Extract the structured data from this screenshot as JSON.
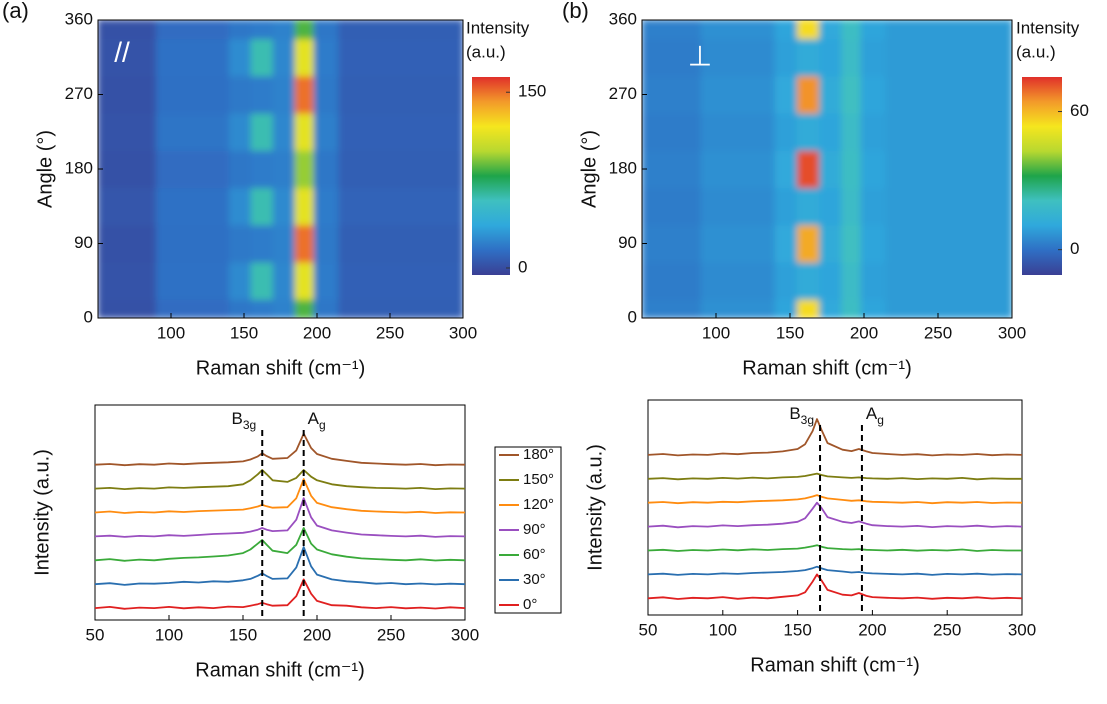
{
  "chart_data": [
    {
      "type": "heatmap",
      "panel": "(a)",
      "annotation": "//",
      "x_label": "Raman shift (cm⁻¹)",
      "y_label": "Angle (°)",
      "colorbar_title": [
        "Intensity",
        "(a.u.)"
      ],
      "xbins": [
        50,
        90,
        140,
        155,
        170,
        185,
        198,
        215,
        300
      ],
      "ybins": [
        0,
        22.5,
        67.5,
        112.5,
        157.5,
        202.5,
        247.5,
        292.5,
        337.5,
        360
      ],
      "values": [
        [
          2,
          14,
          18,
          20,
          22,
          85,
          18,
          8
        ],
        [
          3,
          16,
          25,
          60,
          24,
          115,
          20,
          9
        ],
        [
          2,
          15,
          19,
          20,
          22,
          150,
          19,
          8
        ],
        [
          4,
          16,
          26,
          60,
          25,
          115,
          20,
          10
        ],
        [
          2,
          14,
          18,
          20,
          21,
          95,
          18,
          8
        ],
        [
          3,
          17,
          25,
          60,
          24,
          115,
          21,
          9
        ],
        [
          2,
          15,
          19,
          20,
          22,
          150,
          19,
          8
        ],
        [
          3,
          16,
          26,
          60,
          24,
          115,
          20,
          9
        ],
        [
          2,
          14,
          18,
          20,
          22,
          85,
          18,
          8
        ]
      ],
      "xlim": [
        50,
        300
      ],
      "ylim": [
        0,
        360
      ],
      "xticks": [
        100,
        150,
        200,
        250,
        300
      ],
      "yticks": [
        0,
        90,
        180,
        270,
        360
      ],
      "zlim": [
        -6,
        163
      ],
      "zticks": [
        0,
        150
      ],
      "colormap": [
        "#3a3f94",
        "#2f6fc4",
        "#2fa8dc",
        "#3fc0c0",
        "#1ea44a",
        "#b8d830",
        "#f5e61e",
        "#f39a2a",
        "#e0302a"
      ]
    },
    {
      "type": "line",
      "x_label": "Raman shift (cm⁻¹)",
      "y_label": "Intensity (a.u.)",
      "legend": "outside-right",
      "x": [
        50,
        60,
        70,
        80,
        90,
        100,
        110,
        120,
        130,
        140,
        150,
        155,
        160,
        163,
        166,
        170,
        180,
        186,
        191,
        196,
        200,
        210,
        220,
        230,
        240,
        250,
        260,
        270,
        280,
        290,
        300
      ],
      "xlim": [
        50,
        300
      ],
      "xticks": [
        50,
        100,
        150,
        200,
        250,
        300
      ],
      "ylim": [
        0,
        9
      ],
      "annotations": [
        {
          "label": "B",
          "subscript": "3g",
          "x": 163
        },
        {
          "label": "A",
          "subscript": "g",
          "x": 191
        }
      ],
      "series": [
        {
          "name": "0°",
          "color": "#e02020",
          "values": [
            0.5,
            0.55,
            0.47,
            0.52,
            0.5,
            0.55,
            0.49,
            0.53,
            0.5,
            0.56,
            0.54,
            0.6,
            0.66,
            0.72,
            0.66,
            0.6,
            0.62,
            1.0,
            1.7,
            1.1,
            0.8,
            0.62,
            0.6,
            0.53,
            0.5,
            0.54,
            0.49,
            0.52,
            0.48,
            0.53,
            0.5
          ]
        },
        {
          "name": "30°",
          "color": "#2a6fb0",
          "values": [
            1.5,
            1.54,
            1.47,
            1.53,
            1.52,
            1.55,
            1.6,
            1.57,
            1.62,
            1.6,
            1.66,
            1.72,
            1.85,
            1.95,
            1.84,
            1.72,
            1.74,
            2.2,
            3.05,
            2.25,
            1.9,
            1.7,
            1.62,
            1.58,
            1.52,
            1.55,
            1.5,
            1.53,
            1.49,
            1.52,
            1.5
          ]
        },
        {
          "name": "60°",
          "color": "#3aaa3a",
          "values": [
            2.5,
            2.55,
            2.48,
            2.53,
            2.5,
            2.56,
            2.6,
            2.62,
            2.66,
            2.7,
            2.8,
            2.95,
            3.2,
            3.35,
            3.15,
            2.9,
            2.8,
            3.15,
            3.85,
            3.2,
            2.95,
            2.75,
            2.65,
            2.58,
            2.55,
            2.52,
            2.5,
            2.54,
            2.49,
            2.52,
            2.5
          ]
        },
        {
          "name": "90°",
          "color": "#9a4fc0",
          "values": [
            3.5,
            3.53,
            3.48,
            3.52,
            3.5,
            3.55,
            3.52,
            3.56,
            3.6,
            3.62,
            3.65,
            3.7,
            3.78,
            3.85,
            3.78,
            3.72,
            3.75,
            4.2,
            5.1,
            4.3,
            3.95,
            3.75,
            3.66,
            3.58,
            3.55,
            3.52,
            3.5,
            3.53,
            3.48,
            3.51,
            3.5
          ]
        },
        {
          "name": "120°",
          "color": "#ff8c10",
          "values": [
            4.5,
            4.54,
            4.48,
            4.52,
            4.5,
            4.55,
            4.52,
            4.56,
            4.58,
            4.6,
            4.62,
            4.68,
            4.75,
            4.82,
            4.76,
            4.7,
            4.72,
            5.1,
            5.9,
            5.2,
            4.9,
            4.72,
            4.64,
            4.57,
            4.54,
            4.52,
            4.5,
            4.53,
            4.48,
            4.51,
            4.5
          ]
        },
        {
          "name": "150°",
          "color": "#7d7d12",
          "values": [
            5.5,
            5.53,
            5.48,
            5.52,
            5.5,
            5.55,
            5.53,
            5.56,
            5.58,
            5.6,
            5.68,
            5.85,
            6.1,
            6.28,
            6.1,
            5.85,
            5.78,
            5.95,
            6.28,
            6.0,
            5.85,
            5.68,
            5.6,
            5.56,
            5.53,
            5.52,
            5.5,
            5.53,
            5.48,
            5.51,
            5.5
          ]
        },
        {
          "name": "180°",
          "color": "#a0562a",
          "values": [
            6.5,
            6.53,
            6.48,
            6.52,
            6.5,
            6.55,
            6.52,
            6.56,
            6.58,
            6.6,
            6.64,
            6.72,
            6.85,
            6.98,
            6.86,
            6.75,
            6.78,
            7.1,
            7.8,
            7.2,
            6.95,
            6.75,
            6.66,
            6.58,
            6.55,
            6.52,
            6.5,
            6.53,
            6.48,
            6.51,
            6.5
          ]
        }
      ]
    },
    {
      "type": "heatmap",
      "panel": "(b)",
      "annotation": "⊥",
      "x_label": "Raman shift (cm⁻¹)",
      "y_label": "Angle (°)",
      "colorbar_title": [
        "Intensity",
        "(a.u.)"
      ],
      "xbins": [
        50,
        90,
        140,
        155,
        170,
        185,
        198,
        215,
        300
      ],
      "ybins": [
        0,
        22.5,
        67.5,
        112.5,
        157.5,
        202.5,
        247.5,
        292.5,
        337.5,
        360
      ],
      "values": [
        [
          3,
          6,
          10,
          55,
          11,
          20,
          10,
          8
        ],
        [
          2,
          5,
          9,
          12,
          10,
          19,
          9,
          8
        ],
        [
          3,
          6,
          11,
          62,
          12,
          21,
          10,
          8
        ],
        [
          2,
          5,
          9,
          12,
          10,
          19,
          9,
          8
        ],
        [
          3,
          6,
          11,
          72,
          12,
          20,
          10,
          8
        ],
        [
          2,
          5,
          9,
          12,
          10,
          19,
          9,
          8
        ],
        [
          3,
          6,
          11,
          65,
          12,
          21,
          10,
          8
        ],
        [
          2,
          5,
          9,
          12,
          10,
          19,
          9,
          8
        ],
        [
          3,
          6,
          10,
          55,
          11,
          20,
          10,
          8
        ]
      ],
      "xlim": [
        50,
        300
      ],
      "ylim": [
        0,
        360
      ],
      "xticks": [
        100,
        150,
        200,
        250,
        300
      ],
      "yticks": [
        0,
        90,
        180,
        270,
        360
      ],
      "zlim": [
        -11,
        75
      ],
      "zticks": [
        0,
        60
      ],
      "colormap": [
        "#3a3f94",
        "#2f6fc4",
        "#2fa8dc",
        "#3fc0c0",
        "#1ea44a",
        "#b8d830",
        "#f5e61e",
        "#f39a2a",
        "#e0302a"
      ]
    },
    {
      "type": "line",
      "x_label": "Raman shift (cm⁻¹)",
      "y_label": "Intensity (a.u.)",
      "x": [
        50,
        60,
        70,
        80,
        90,
        100,
        110,
        120,
        130,
        140,
        150,
        155,
        160,
        163,
        166,
        170,
        180,
        186,
        191,
        196,
        200,
        210,
        220,
        230,
        240,
        250,
        260,
        270,
        280,
        290,
        300
      ],
      "xlim": [
        50,
        300
      ],
      "xticks": [
        50,
        100,
        150,
        200,
        250,
        300
      ],
      "ylim": [
        0,
        9
      ],
      "annotations": [
        {
          "label": "B",
          "subscript": "3g",
          "x": 165
        },
        {
          "label": "A",
          "subscript": "g",
          "x": 193
        }
      ],
      "series": [
        {
          "color": "#e02020",
          "values": [
            0.7,
            0.74,
            0.67,
            0.72,
            0.7,
            0.75,
            0.68,
            0.73,
            0.7,
            0.76,
            0.82,
            0.95,
            1.4,
            1.7,
            1.45,
            1.05,
            0.85,
            0.82,
            0.92,
            0.8,
            0.75,
            0.72,
            0.7,
            0.73,
            0.68,
            0.72,
            0.7,
            0.74,
            0.69,
            0.72,
            0.7
          ]
        },
        {
          "color": "#2a6fb0",
          "values": [
            1.7,
            1.73,
            1.68,
            1.72,
            1.7,
            1.74,
            1.72,
            1.76,
            1.78,
            1.8,
            1.84,
            1.88,
            1.96,
            2.02,
            1.95,
            1.88,
            1.82,
            1.78,
            1.8,
            1.76,
            1.74,
            1.72,
            1.7,
            1.73,
            1.68,
            1.72,
            1.7,
            1.73,
            1.69,
            1.71,
            1.7
          ]
        },
        {
          "color": "#3aaa3a",
          "values": [
            2.7,
            2.73,
            2.68,
            2.72,
            2.7,
            2.74,
            2.71,
            2.75,
            2.72,
            2.76,
            2.78,
            2.82,
            2.88,
            2.92,
            2.86,
            2.8,
            2.76,
            2.74,
            2.76,
            2.73,
            2.72,
            2.7,
            2.73,
            2.69,
            2.72,
            2.7,
            2.74,
            2.68,
            2.72,
            2.7,
            2.7
          ]
        },
        {
          "color": "#9a4fc0",
          "values": [
            3.7,
            3.74,
            3.67,
            3.72,
            3.7,
            3.75,
            3.72,
            3.76,
            3.78,
            3.82,
            3.9,
            4.05,
            4.45,
            4.7,
            4.48,
            4.1,
            3.9,
            3.85,
            3.92,
            3.82,
            3.76,
            3.72,
            3.7,
            3.73,
            3.68,
            3.72,
            3.7,
            3.74,
            3.69,
            3.72,
            3.7
          ]
        },
        {
          "color": "#ff8c10",
          "values": [
            4.7,
            4.73,
            4.68,
            4.72,
            4.7,
            4.74,
            4.72,
            4.76,
            4.78,
            4.8,
            4.84,
            4.88,
            4.96,
            5.02,
            4.95,
            4.88,
            4.82,
            4.78,
            4.8,
            4.76,
            4.74,
            4.72,
            4.7,
            4.73,
            4.68,
            4.72,
            4.7,
            4.73,
            4.69,
            4.71,
            4.7
          ]
        },
        {
          "color": "#7d7d12",
          "values": [
            5.7,
            5.73,
            5.68,
            5.72,
            5.7,
            5.74,
            5.71,
            5.75,
            5.72,
            5.76,
            5.78,
            5.82,
            5.88,
            5.92,
            5.86,
            5.8,
            5.76,
            5.74,
            5.76,
            5.73,
            5.72,
            5.7,
            5.73,
            5.69,
            5.72,
            5.7,
            5.74,
            5.68,
            5.72,
            5.7,
            5.7
          ]
        },
        {
          "color": "#a0562a",
          "values": [
            6.7,
            6.74,
            6.68,
            6.72,
            6.7,
            6.76,
            6.73,
            6.78,
            6.8,
            6.85,
            6.95,
            7.15,
            7.7,
            8.2,
            7.75,
            7.2,
            6.92,
            6.86,
            6.95,
            6.85,
            6.78,
            6.74,
            6.7,
            6.73,
            6.68,
            6.72,
            6.7,
            6.74,
            6.69,
            6.72,
            6.7
          ]
        }
      ]
    }
  ]
}
